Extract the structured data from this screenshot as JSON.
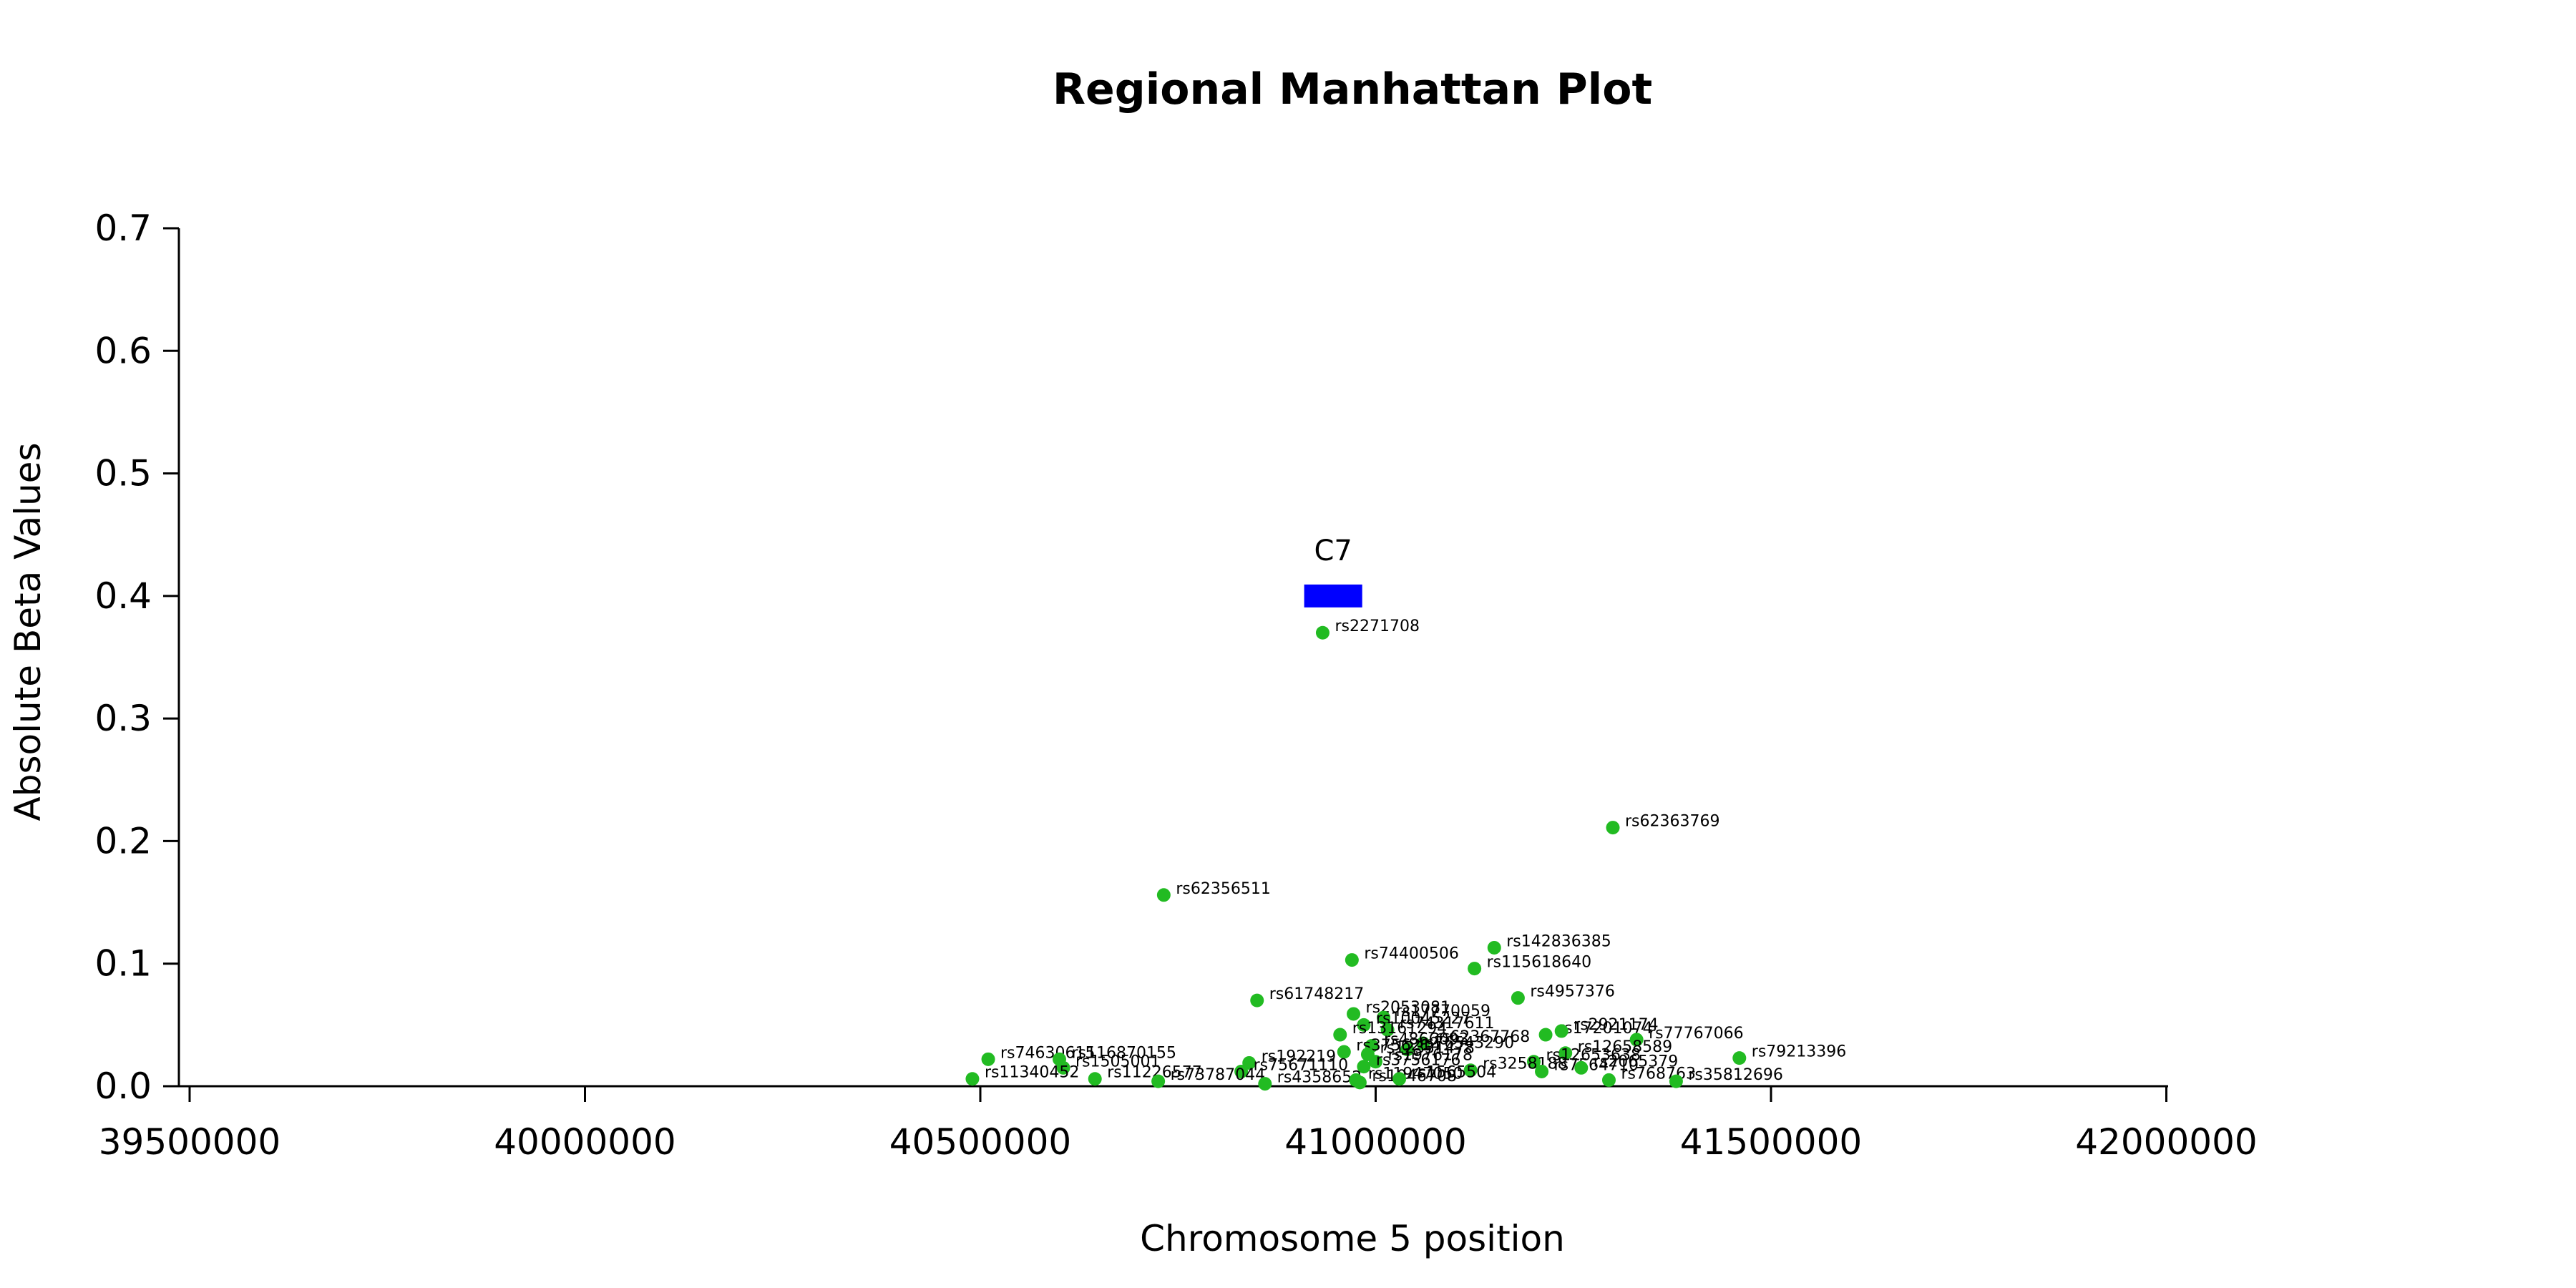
{
  "chart_data": {
    "type": "scatter",
    "title": "Regional Manhattan Plot",
    "xlabel": "Chromosome 5 position",
    "ylabel": "Absolute Beta Values",
    "xlim": [
      39480000,
      42000000
    ],
    "ylim": [
      0,
      0.7
    ],
    "x_ticks": [
      39500000,
      40000000,
      40500000,
      41000000,
      41500000,
      42000000
    ],
    "y_ticks": [
      0.0,
      0.1,
      0.2,
      0.3,
      0.4,
      0.5,
      0.6,
      0.7
    ],
    "x_tick_labels": [
      "39500000",
      "40000000",
      "40500000",
      "41000000",
      "41500000",
      "42000000"
    ],
    "y_tick_labels": [
      "0.0",
      "0.1",
      "0.2",
      "0.3",
      "0.4",
      "0.5",
      "0.6",
      "0.7"
    ],
    "grid": false,
    "point_color": "#22bb22",
    "gene_color": "#0000ff",
    "genes": [
      {
        "name": "C7",
        "start": 40909600,
        "end": 40983000,
        "y": 0.4
      }
    ],
    "points": [
      {
        "label": "rs2271708",
        "x": 40933000,
        "y": 0.37
      },
      {
        "label": "rs62363769",
        "x": 41300000,
        "y": 0.211
      },
      {
        "label": "rs62356511",
        "x": 40732000,
        "y": 0.156
      },
      {
        "label": "rs142836385",
        "x": 41150000,
        "y": 0.113
      },
      {
        "label": "rs74400506",
        "x": 40970000,
        "y": 0.103
      },
      {
        "label": "rs115618640",
        "x": 41125000,
        "y": 0.096
      },
      {
        "label": "rs4957376",
        "x": 41180000,
        "y": 0.072
      },
      {
        "label": "rs61748217",
        "x": 40850000,
        "y": 0.07
      },
      {
        "label": "rs2053081",
        "x": 40972000,
        "y": 0.059
      },
      {
        "label": "rs17770059",
        "x": 41010000,
        "y": 0.056
      },
      {
        "label": "rs10045227",
        "x": 40985000,
        "y": 0.05
      },
      {
        "label": "rs74317611",
        "x": 41015000,
        "y": 0.046
      },
      {
        "label": "rs13161294",
        "x": 40955000,
        "y": 0.042
      },
      {
        "label": "rs17201074",
        "x": 41215000,
        "y": 0.042
      },
      {
        "label": "rs2921174",
        "x": 41235000,
        "y": 0.045
      },
      {
        "label": "rs77767066",
        "x": 41330000,
        "y": 0.038
      },
      {
        "label": "rs62367768",
        "x": 41060000,
        "y": 0.035
      },
      {
        "label": "rs4866093",
        "x": 40995000,
        "y": 0.033
      },
      {
        "label": "rs76543290",
        "x": 41040000,
        "y": 0.03
      },
      {
        "label": "rs3756214",
        "x": 40960000,
        "y": 0.028
      },
      {
        "label": "rs12658589",
        "x": 41240000,
        "y": 0.027
      },
      {
        "label": "rs12331478",
        "x": 40990000,
        "y": 0.026
      },
      {
        "label": "rs79213396",
        "x": 41460000,
        "y": 0.023
      },
      {
        "label": "rs74630615",
        "x": 40510000,
        "y": 0.022
      },
      {
        "label": "rs116870155",
        "x": 40600000,
        "y": 0.022
      },
      {
        "label": "rs1976178",
        "x": 41000000,
        "y": 0.02
      },
      {
        "label": "rs192219",
        "x": 40840000,
        "y": 0.019
      },
      {
        "label": "rs12653638",
        "x": 41200000,
        "y": 0.02
      },
      {
        "label": "rs1505001",
        "x": 40605000,
        "y": 0.015
      },
      {
        "label": "rs3258188",
        "x": 41120000,
        "y": 0.013
      },
      {
        "label": "rs7564710",
        "x": 41210000,
        "y": 0.012
      },
      {
        "label": "rs75671110",
        "x": 40830000,
        "y": 0.012
      },
      {
        "label": "rs2065379",
        "x": 41260000,
        "y": 0.015
      },
      {
        "label": "rs3756176",
        "x": 40985000,
        "y": 0.016
      },
      {
        "label": "rs11340452",
        "x": 40490000,
        "y": 0.006
      },
      {
        "label": "rs11226577",
        "x": 40645000,
        "y": 0.006
      },
      {
        "label": "rs73787044",
        "x": 40725000,
        "y": 0.004
      },
      {
        "label": "rs4358652",
        "x": 40860000,
        "y": 0.002
      },
      {
        "label": "rs11947050",
        "x": 40975000,
        "y": 0.005
      },
      {
        "label": "rs1046708",
        "x": 40980000,
        "y": 0.003
      },
      {
        "label": "rs768763",
        "x": 41295000,
        "y": 0.005
      },
      {
        "label": "rs35812696",
        "x": 41380000,
        "y": 0.004
      },
      {
        "label": "rs1565504",
        "x": 41030000,
        "y": 0.006
      }
    ]
  }
}
